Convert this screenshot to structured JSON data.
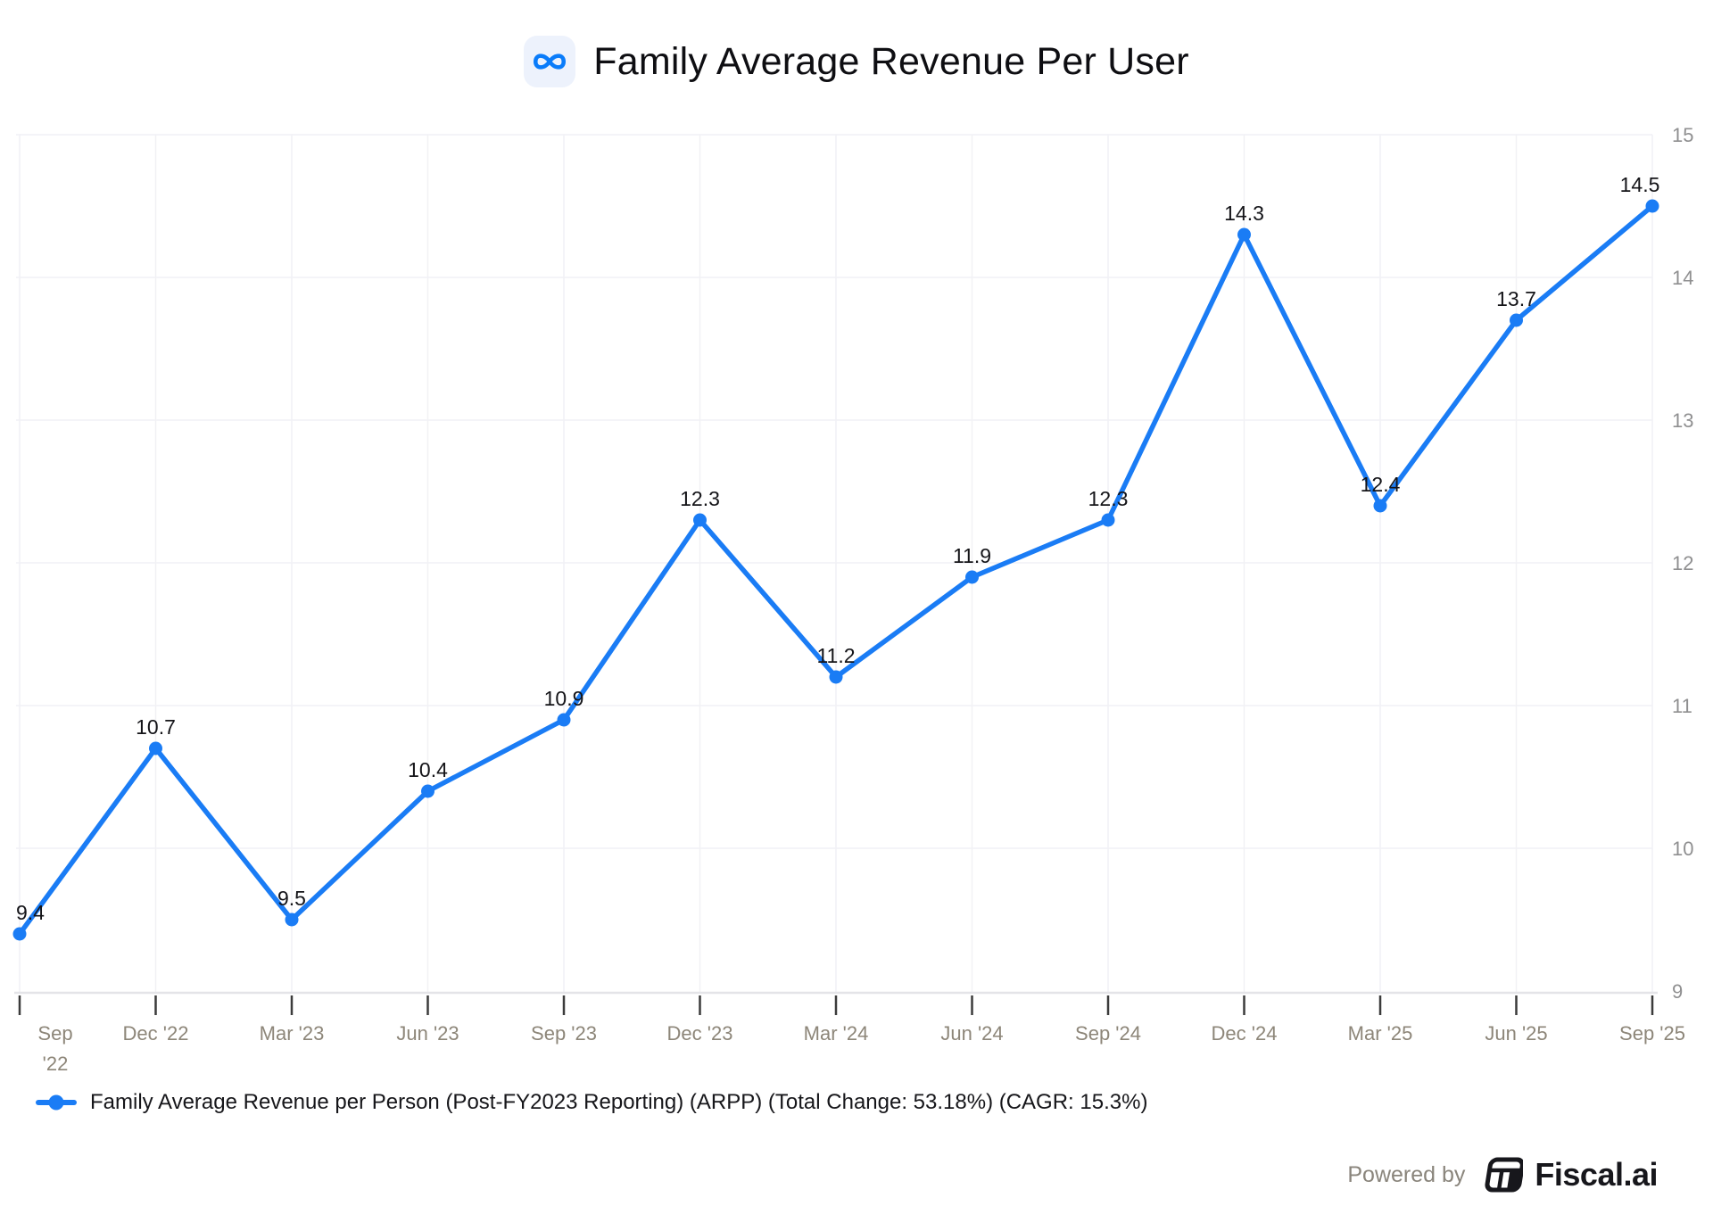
{
  "chart_data": {
    "type": "line",
    "title": "Family Average Revenue Per User",
    "x_labels": [
      "Sep '22",
      "Dec '22",
      "Mar '23",
      "Jun '23",
      "Sep '23",
      "Dec '23",
      "Mar '24",
      "Jun '24",
      "Sep '24",
      "Dec '24",
      "Mar '25",
      "Jun '25",
      "Sep '25"
    ],
    "series": [
      {
        "name": "Family Average Revenue per Person (Post-FY2023 Reporting) (ARPP) (Total Change: 53.18%) (CAGR: 15.3%)",
        "values": [
          9.4,
          10.7,
          9.5,
          10.4,
          10.9,
          12.3,
          11.2,
          11.9,
          12.3,
          14.3,
          12.4,
          13.7,
          14.5
        ],
        "color": "#1a7cf5"
      }
    ],
    "ylim": [
      9,
      15
    ],
    "yticks": [
      9,
      10,
      11,
      12,
      13,
      14,
      15
    ],
    "y_axis_side": "right",
    "grid": true,
    "value_labels": true,
    "legend_position": "bottom-left"
  },
  "header": {
    "logo_icon": "meta-infinity-icon"
  },
  "footer": {
    "powered_by": "Powered by",
    "brand": "Fiscal.ai"
  },
  "colors": {
    "line": "#1a7cf5",
    "point": "#1a7cf5",
    "grid": "#f1f1f5",
    "axis_line": "#e4e4e8",
    "tick": "#3b3b3b",
    "x_label": "#8d8679",
    "y_label": "#8f8f90",
    "value_label": "#141418",
    "title": "#0e0e12",
    "meta_blue": "#0a7cfa",
    "meta_icon_bg": "#edf2fc",
    "powered_by": "#8a857c",
    "fiscal_dark": "#17171c"
  }
}
